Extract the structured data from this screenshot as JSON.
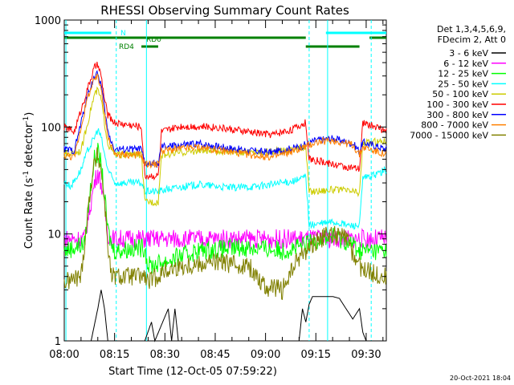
{
  "chart_data": {
    "type": "line",
    "title": "RHESSI Observing Summary Count Rates",
    "xlabel": "Start Time (12-Oct-05 07:59:22)",
    "ylabel": "Count Rate (s",
    "ylabel_sup1": "-1",
    "ylabel_mid": " detector",
    "ylabel_sup2": "-1",
    "ylabel_end": ")",
    "yscale": "log",
    "ylim": [
      1,
      1000
    ],
    "xlim_minutes": [
      0,
      96
    ],
    "xticks": [
      {
        "m": 0,
        "label": "08:00"
      },
      {
        "m": 15,
        "label": "08:15"
      },
      {
        "m": 30,
        "label": "08:30"
      },
      {
        "m": 45,
        "label": "08:45"
      },
      {
        "m": 60,
        "label": "09:00"
      },
      {
        "m": 75,
        "label": "09:15"
      },
      {
        "m": 90,
        "label": "09:30"
      }
    ],
    "yticks": [
      {
        "v": 1,
        "label": "1"
      },
      {
        "v": 10,
        "label": "10"
      },
      {
        "v": 100,
        "label": "100"
      },
      {
        "v": 1000,
        "label": "1000"
      }
    ],
    "legend_header": [
      "Det 1,3,4,5,6,9,",
      "FDecim 2, Att 0"
    ],
    "legend_placement": "right",
    "series": [
      {
        "name": "3 - 6 keV",
        "color": "#000000",
        "points": [
          [
            0,
            1
          ],
          [
            8,
            1
          ],
          [
            10,
            2
          ],
          [
            11,
            3
          ],
          [
            12,
            2
          ],
          [
            13,
            1
          ],
          [
            24,
            1
          ],
          [
            26,
            1.5
          ],
          [
            27,
            1
          ],
          [
            31,
            2
          ],
          [
            32,
            1
          ],
          [
            33,
            2
          ],
          [
            34,
            1
          ],
          [
            70,
            1
          ],
          [
            71,
            2
          ],
          [
            72,
            1.5
          ],
          [
            73,
            2.2
          ],
          [
            74,
            2.6
          ],
          [
            80,
            2.6
          ],
          [
            82,
            2.5
          ],
          [
            84,
            2
          ],
          [
            86,
            1.6
          ],
          [
            88,
            2
          ],
          [
            89,
            1.2
          ],
          [
            90,
            1
          ],
          [
            96,
            1
          ]
        ]
      },
      {
        "name": "6 - 12 keV",
        "color": "#ff00ff",
        "points": [
          [
            0,
            9
          ],
          [
            6,
            9
          ],
          [
            8,
            20
          ],
          [
            9,
            30
          ],
          [
            10,
            38
          ],
          [
            11,
            30
          ],
          [
            12,
            18
          ],
          [
            13,
            10
          ],
          [
            14,
            9
          ],
          [
            96,
            9
          ]
        ]
      },
      {
        "name": "12 - 25 keV",
        "color": "#00ff00",
        "points": [
          [
            0,
            7
          ],
          [
            6,
            8
          ],
          [
            8,
            30
          ],
          [
            9,
            50
          ],
          [
            10,
            58
          ],
          [
            11,
            45
          ],
          [
            12,
            22
          ],
          [
            13,
            11
          ],
          [
            14,
            8
          ],
          [
            15,
            7
          ],
          [
            24,
            7.5
          ],
          [
            25,
            5
          ],
          [
            30,
            5.5
          ],
          [
            40,
            7
          ],
          [
            55,
            7.5
          ],
          [
            65,
            7
          ],
          [
            70,
            7.5
          ],
          [
            76,
            9
          ],
          [
            80,
            9.5
          ],
          [
            86,
            8
          ],
          [
            88,
            7
          ],
          [
            96,
            7
          ]
        ]
      },
      {
        "name": "25 - 50 keV",
        "color": "#00ffff",
        "points": [
          [
            0,
            30
          ],
          [
            2,
            28
          ],
          [
            5,
            40
          ],
          [
            7,
            60
          ],
          [
            9,
            80
          ],
          [
            10,
            95
          ],
          [
            11,
            80
          ],
          [
            12,
            55
          ],
          [
            13,
            40
          ],
          [
            15,
            30
          ],
          [
            23,
            30
          ],
          [
            24,
            25
          ],
          [
            28,
            25
          ],
          [
            30,
            26
          ],
          [
            40,
            29
          ],
          [
            50,
            27
          ],
          [
            58,
            28
          ],
          [
            65,
            30
          ],
          [
            70,
            32
          ],
          [
            72,
            35
          ],
          [
            73,
            12
          ],
          [
            80,
            13
          ],
          [
            85,
            12
          ],
          [
            88,
            12
          ],
          [
            89,
            33
          ],
          [
            92,
            35
          ],
          [
            96,
            40
          ]
        ]
      },
      {
        "name": "50 - 100 keV",
        "color": "#cccc00",
        "points": [
          [
            0,
            55
          ],
          [
            5,
            60
          ],
          [
            8,
            150
          ],
          [
            9,
            200
          ],
          [
            10,
            220
          ],
          [
            11,
            180
          ],
          [
            12,
            110
          ],
          [
            13,
            70
          ],
          [
            15,
            55
          ],
          [
            23,
            55
          ],
          [
            24,
            20
          ],
          [
            28,
            20
          ],
          [
            29,
            55
          ],
          [
            40,
            60
          ],
          [
            55,
            58
          ],
          [
            65,
            60
          ],
          [
            72,
            65
          ],
          [
            73,
            25
          ],
          [
            80,
            26
          ],
          [
            86,
            25
          ],
          [
            88,
            24
          ],
          [
            89,
            70
          ],
          [
            96,
            75
          ]
        ]
      },
      {
        "name": "100 - 300 keV",
        "color": "#ff0000",
        "points": [
          [
            0,
            100
          ],
          [
            3,
            90
          ],
          [
            7,
            230
          ],
          [
            9,
            360
          ],
          [
            10,
            380
          ],
          [
            11,
            300
          ],
          [
            12,
            180
          ],
          [
            13,
            130
          ],
          [
            15,
            110
          ],
          [
            23,
            100
          ],
          [
            24,
            35
          ],
          [
            28,
            35
          ],
          [
            29,
            90
          ],
          [
            35,
            102
          ],
          [
            45,
            100
          ],
          [
            55,
            90
          ],
          [
            62,
            85
          ],
          [
            68,
            95
          ],
          [
            72,
            110
          ],
          [
            73,
            50
          ],
          [
            80,
            45
          ],
          [
            88,
            40
          ],
          [
            89,
            110
          ],
          [
            93,
            100
          ],
          [
            96,
            90
          ]
        ]
      },
      {
        "name": "300 - 800 keV",
        "color": "#0000ff",
        "points": [
          [
            0,
            62
          ],
          [
            3,
            60
          ],
          [
            7,
            200
          ],
          [
            9,
            300
          ],
          [
            10,
            310
          ],
          [
            11,
            250
          ],
          [
            12,
            150
          ],
          [
            13,
            90
          ],
          [
            15,
            62
          ],
          [
            23,
            62
          ],
          [
            24,
            45
          ],
          [
            28,
            45
          ],
          [
            29,
            65
          ],
          [
            40,
            70
          ],
          [
            55,
            60
          ],
          [
            62,
            58
          ],
          [
            70,
            65
          ],
          [
            75,
            75
          ],
          [
            80,
            78
          ],
          [
            86,
            70
          ],
          [
            88,
            60
          ],
          [
            89,
            72
          ],
          [
            96,
            62
          ]
        ]
      },
      {
        "name": "800 - 7000 keV",
        "color": "#ff8000",
        "points": [
          [
            0,
            55
          ],
          [
            3,
            52
          ],
          [
            7,
            190
          ],
          [
            9,
            280
          ],
          [
            10,
            290
          ],
          [
            11,
            230
          ],
          [
            12,
            140
          ],
          [
            13,
            80
          ],
          [
            15,
            55
          ],
          [
            23,
            55
          ],
          [
            24,
            45
          ],
          [
            28,
            45
          ],
          [
            29,
            60
          ],
          [
            40,
            65
          ],
          [
            55,
            55
          ],
          [
            62,
            52
          ],
          [
            70,
            62
          ],
          [
            75,
            72
          ],
          [
            80,
            75
          ],
          [
            86,
            68
          ],
          [
            88,
            55
          ],
          [
            89,
            65
          ],
          [
            96,
            55
          ]
        ]
      },
      {
        "name": "7000 - 15000 keV",
        "color": "#808000",
        "points": [
          [
            0,
            3.5
          ],
          [
            5,
            4
          ],
          [
            8,
            30
          ],
          [
            9,
            45
          ],
          [
            10,
            55
          ],
          [
            11,
            40
          ],
          [
            12,
            20
          ],
          [
            13,
            8
          ],
          [
            14,
            4
          ],
          [
            24,
            4
          ],
          [
            25,
            3.5
          ],
          [
            30,
            4.5
          ],
          [
            35,
            5
          ],
          [
            45,
            5.5
          ],
          [
            55,
            5
          ],
          [
            60,
            3.2
          ],
          [
            65,
            3
          ],
          [
            70,
            6
          ],
          [
            76,
            9
          ],
          [
            80,
            10
          ],
          [
            84,
            9
          ],
          [
            88,
            5
          ],
          [
            90,
            4.5
          ],
          [
            96,
            4
          ]
        ]
      }
    ],
    "flag_labels": [
      "N",
      "RD0",
      "RD4"
    ],
    "flags": [
      {
        "label_index": 0,
        "color": "#00ffff",
        "segments": [
          [
            0,
            14
          ],
          [
            78,
            96
          ]
        ],
        "row": 0
      },
      {
        "label_index": 1,
        "color": "#008000",
        "segments": [
          [
            0,
            72
          ],
          [
            91,
            96
          ]
        ],
        "row": 1
      },
      {
        "label_index": 2,
        "color": "#008000",
        "segments": [
          [
            23,
            28
          ],
          [
            72,
            88
          ]
        ],
        "row": 2
      }
    ],
    "vlines": [
      {
        "m": 0.5,
        "style": "solid"
      },
      {
        "m": 15.5,
        "style": "dashed"
      },
      {
        "m": 24.5,
        "style": "solid"
      },
      {
        "m": 73,
        "style": "dashed"
      },
      {
        "m": 78.5,
        "style": "solid"
      },
      {
        "m": 91.5,
        "style": "dashed"
      }
    ],
    "grid": false
  },
  "footer_timestamp": "20-Oct-2021 18:04"
}
